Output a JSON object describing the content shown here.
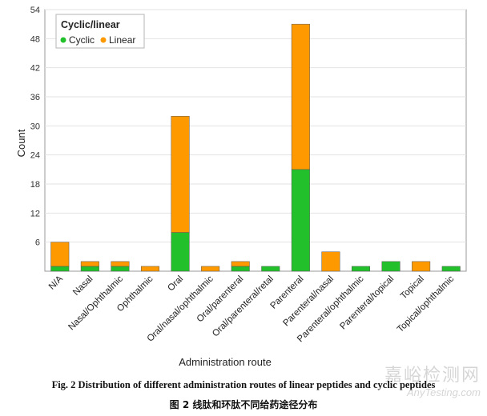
{
  "chart_data": {
    "type": "bar",
    "stacked": true,
    "title": "",
    "xlabel": "Administration route",
    "ylabel": "Count",
    "ylim": [
      0,
      54
    ],
    "yticks": [
      6,
      12,
      18,
      24,
      30,
      36,
      42,
      48,
      54
    ],
    "categories": [
      "N/A",
      "Nasal",
      "Nasal/Ophthalmic",
      "Ophthalmic",
      "Oral",
      "Oral/nasal/ophthalmic",
      "Oral/parenteral",
      "Oral/parenteral/retal",
      "Parenteral",
      "Parenteral/nasal",
      "Parenteral/ophthalmic",
      "Parenteral/topical",
      "Topical",
      "Topical/ophthalmic"
    ],
    "series": [
      {
        "name": "Cyclic",
        "color": "#22c02a",
        "values": [
          1,
          1,
          1,
          0,
          8,
          0,
          1,
          1,
          21,
          0,
          1,
          2,
          0,
          1
        ]
      },
      {
        "name": "Linear",
        "color": "#ff9900",
        "values": [
          5,
          1,
          1,
          1,
          24,
          1,
          1,
          0,
          30,
          4,
          0,
          0,
          2,
          0
        ]
      }
    ],
    "legend": {
      "title": "Cyclic/linear",
      "position": "top-left"
    }
  },
  "caption": {
    "en": "Fig. 2    Distribution of different administration routes of linear peptides and cyclic peptides",
    "zh": "图 2    线肽和环肽不同给药途径分布"
  },
  "watermark": {
    "zh": "嘉峪检测网",
    "en": "AnyTesting.com"
  }
}
